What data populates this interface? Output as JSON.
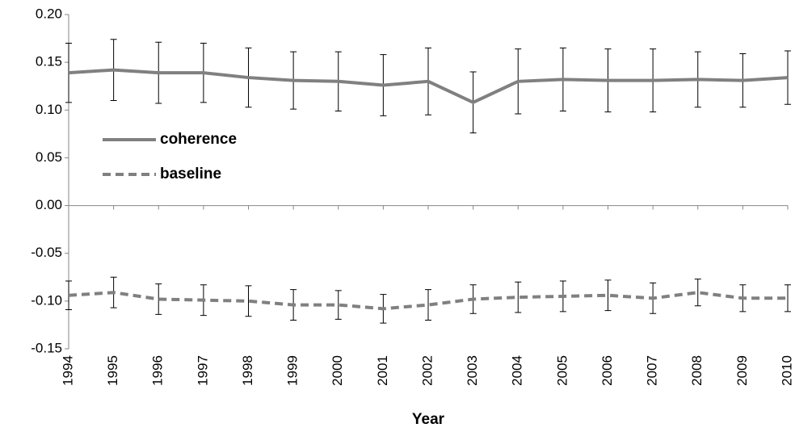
{
  "chart_data": {
    "type": "line",
    "x_label": "Year",
    "categories": [
      "1994",
      "1995",
      "1996",
      "1997",
      "1998",
      "1999",
      "2000",
      "2001",
      "2002",
      "2003",
      "2004",
      "2005",
      "2006",
      "2007",
      "2008",
      "2009",
      "2010"
    ],
    "series": [
      {
        "name": "coherence",
        "color": "#808080",
        "dash": false,
        "values": [
          0.139,
          0.142,
          0.139,
          0.139,
          0.134,
          0.131,
          0.13,
          0.126,
          0.13,
          0.108,
          0.13,
          0.132,
          0.131,
          0.131,
          0.132,
          0.131,
          0.134
        ],
        "errors": [
          0.031,
          0.032,
          0.032,
          0.031,
          0.031,
          0.03,
          0.031,
          0.032,
          0.035,
          0.032,
          0.034,
          0.033,
          0.033,
          0.033,
          0.029,
          0.028,
          0.028
        ]
      },
      {
        "name": "baseline",
        "color": "#808080",
        "dash": true,
        "values": [
          -0.094,
          -0.091,
          -0.098,
          -0.099,
          -0.1,
          -0.104,
          -0.104,
          -0.108,
          -0.104,
          -0.098,
          -0.096,
          -0.095,
          -0.094,
          -0.097,
          -0.091,
          -0.097,
          -0.097
        ],
        "errors": [
          0.015,
          0.016,
          0.016,
          0.016,
          0.016,
          0.016,
          0.015,
          0.015,
          0.016,
          0.015,
          0.016,
          0.016,
          0.016,
          0.016,
          0.014,
          0.014,
          0.014
        ]
      }
    ],
    "ylim": [
      -0.15,
      0.2
    ],
    "yticks": [
      {
        "value": -0.15,
        "label": "-0.15"
      },
      {
        "value": -0.1,
        "label": "-0.10"
      },
      -0.05,
      {
        "value": 0,
        "label": "0.00"
      },
      0.05,
      {
        "value": 0.1,
        "label": "0.10"
      },
      0.15,
      {
        "value": 0.2,
        "label": "0.20"
      }
    ],
    "legend": "upper left"
  }
}
